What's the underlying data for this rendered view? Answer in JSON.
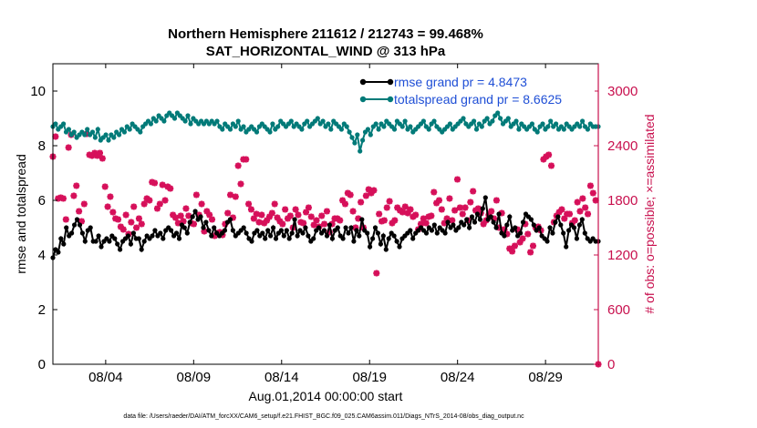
{
  "chart_data": {
    "type": "line",
    "title_line1": "Northern Hemisphere 211612 / 212743 = 99.468%",
    "title_line2": "SAT_HORIZONTAL_WIND @ 313 hPa",
    "xlabel": "Aug.01,2014 00:00:00 start",
    "ylabel_left": "rmse and totalspread",
    "ylabel_right": "# of obs: o=possible; ×=assimilated",
    "footer": "data file: /Users/raeder/DAI/ATM_forcXX/CAM6_setup/f.e21.FHIST_BGC.f09_025.CAM6assim.011/Diags_NTrS_2014-08/obs_diag_output.nc",
    "x_ticks": [
      {
        "label": "08/04",
        "day": 4
      },
      {
        "label": "08/09",
        "day": 9
      },
      {
        "label": "08/14",
        "day": 14
      },
      {
        "label": "08/19",
        "day": 19
      },
      {
        "label": "08/24",
        "day": 24
      },
      {
        "label": "08/29",
        "day": 29
      }
    ],
    "xlim": [
      1,
      32
    ],
    "ylim_left": [
      0,
      11
    ],
    "y_ticks_left": [
      "0",
      "2",
      "4",
      "6",
      "8",
      "10"
    ],
    "ylim_right": [
      0,
      3300
    ],
    "y_ticks_right": [
      "0",
      "600",
      "1200",
      "1800",
      "2400",
      "3000"
    ],
    "colors": {
      "rmse": "#000000",
      "spread": "#007a78",
      "obs": "#d6105a",
      "right_axis": "#c8104e"
    },
    "legend": [
      {
        "label": "rmse grand pr = 4.8473",
        "series": "rmse"
      },
      {
        "label": "totalspread grand pr = 8.6625",
        "series": "spread"
      }
    ],
    "series": [
      {
        "name": "rmse",
        "axis": "left",
        "values": [
          3.9,
          4.2,
          4.1,
          4.6,
          4.4,
          5.0,
          4.7,
          4.8,
          5.1,
          5.3,
          5.1,
          4.8,
          4.5,
          4.9,
          5.0,
          4.5,
          4.5,
          4.7,
          4.3,
          4.5,
          4.6,
          4.5,
          4.7,
          4.6,
          4.4,
          4.2,
          4.5,
          4.6,
          4.7,
          4.4,
          4.8,
          4.6,
          4.6,
          4.2,
          4.5,
          4.7,
          4.6,
          4.7,
          4.9,
          4.7,
          4.8,
          4.6,
          4.9,
          5.0,
          4.9,
          4.7,
          4.8,
          4.6,
          5.1,
          5.0,
          4.8,
          5.2,
          5.4,
          5.6,
          5.3,
          5.4,
          5.0,
          5.2,
          4.9,
          4.7,
          5.0,
          4.8,
          4.7,
          4.8,
          4.9,
          5.2,
          5.3,
          4.9,
          4.7,
          4.8,
          4.9,
          5.0,
          4.8,
          4.6,
          4.5,
          4.8,
          4.9,
          4.7,
          4.8,
          4.6,
          4.9,
          4.7,
          5.0,
          4.6,
          4.8,
          4.9,
          4.7,
          4.9,
          4.6,
          4.8,
          5.3,
          4.7,
          4.9,
          4.8,
          5.0,
          4.7,
          4.5,
          4.6,
          4.9,
          5.0,
          4.8,
          4.9,
          4.7,
          5.1,
          4.6,
          4.9,
          5.0,
          4.7,
          4.6,
          5.0,
          4.8,
          5.0,
          4.5,
          4.9,
          4.7,
          5.3,
          4.9,
          4.8,
          4.3,
          4.6,
          5.0,
          4.8,
          4.4,
          4.7,
          4.2,
          4.6,
          4.8,
          4.7,
          4.5,
          4.3,
          4.6,
          4.7,
          4.8,
          4.9,
          4.6,
          4.8,
          4.9,
          5.0,
          4.9,
          4.8,
          5.0,
          4.9,
          5.1,
          4.8,
          5.0,
          4.9,
          4.8,
          5.2,
          5.0,
          5.1,
          4.9,
          5.0,
          5.2,
          5.1,
          5.3,
          5.0,
          5.4,
          5.2,
          5.5,
          5.3,
          5.7,
          6.1,
          5.3,
          5.4,
          5.2,
          5.0,
          5.5,
          4.8,
          4.7,
          5.1,
          5.4,
          4.9,
          5.0,
          4.7,
          4.8,
          5.2,
          5.5,
          5.4,
          5.3,
          5.1,
          4.9,
          5.0,
          4.7,
          4.6,
          4.5,
          5.0,
          4.8,
          5.2,
          5.4,
          5.1,
          4.8,
          4.3,
          4.9,
          5.1,
          5.0,
          4.6,
          5.1,
          5.3,
          4.8,
          4.6,
          4.5,
          4.6,
          4.5,
          4.5
        ]
      },
      {
        "name": "totalspread",
        "axis": "left",
        "values": [
          8.7,
          8.8,
          8.6,
          8.7,
          8.8,
          8.5,
          8.6,
          8.4,
          8.5,
          8.3,
          8.4,
          8.5,
          8.4,
          8.6,
          8.4,
          8.5,
          8.3,
          8.6,
          8.2,
          8.3,
          8.4,
          8.2,
          8.4,
          8.3,
          8.5,
          8.4,
          8.6,
          8.5,
          8.7,
          8.6,
          8.8,
          8.7,
          8.6,
          8.5,
          8.7,
          8.8,
          8.9,
          8.8,
          9.0,
          8.9,
          9.1,
          9.0,
          8.9,
          9.1,
          9.2,
          9.1,
          9.0,
          9.2,
          9.1,
          9.0,
          8.9,
          9.1,
          8.8,
          9.0,
          8.9,
          8.8,
          8.9,
          8.8,
          8.9,
          8.8,
          8.9,
          8.8,
          8.9,
          8.7,
          8.6,
          8.8,
          8.7,
          8.6,
          8.8,
          8.7,
          8.9,
          8.6,
          8.7,
          8.5,
          8.6,
          8.7,
          8.6,
          8.5,
          8.7,
          8.8,
          8.7,
          8.6,
          8.5,
          8.8,
          8.6,
          8.7,
          8.9,
          8.8,
          8.7,
          8.8,
          8.9,
          8.7,
          8.8,
          8.7,
          8.6,
          8.8,
          8.9,
          8.7,
          8.8,
          8.9,
          9.0,
          8.8,
          8.9,
          8.7,
          8.8,
          8.6,
          8.9,
          8.8,
          8.7,
          8.6,
          8.8,
          8.7,
          8.5,
          8.3,
          8.1,
          8.4,
          7.8,
          8.2,
          8.5,
          8.6,
          8.4,
          8.7,
          8.8,
          8.6,
          8.8,
          8.7,
          8.9,
          8.8,
          8.7,
          8.6,
          8.9,
          8.8,
          8.7,
          8.9,
          8.6,
          8.7,
          8.5,
          8.6,
          8.7,
          8.8,
          8.9,
          8.7,
          8.6,
          8.8,
          8.9,
          8.7,
          8.6,
          8.5,
          8.6,
          8.7,
          8.8,
          8.6,
          8.7,
          8.8,
          8.9,
          9.0,
          8.8,
          8.7,
          8.8,
          8.9,
          8.6,
          8.8,
          8.7,
          8.9,
          9.0,
          8.8,
          8.9,
          9.1,
          9.2,
          9.0,
          8.8,
          8.9,
          9.0,
          8.7,
          8.8,
          8.9,
          8.6,
          8.8,
          8.7,
          8.6,
          8.7,
          8.8,
          8.6,
          8.5,
          8.7,
          8.8,
          8.6,
          8.7,
          8.9,
          8.7,
          8.8,
          8.6,
          8.7,
          8.6,
          8.8,
          8.7,
          8.6,
          8.7,
          8.8,
          8.7,
          8.9,
          8.7,
          8.6,
          8.8,
          8.7,
          8.7,
          8.7
        ]
      },
      {
        "name": "obs_assimilated",
        "axis": "right",
        "values": [
          2280,
          2500,
          1820,
          1830,
          1820,
          1590,
          2380,
          2520,
          1850,
          1960,
          1680,
          1570,
          1760,
          2530,
          2300,
          2290,
          2320,
          2290,
          2320,
          2260,
          1950,
          1730,
          1840,
          1670,
          1600,
          1590,
          1510,
          1480,
          1640,
          1430,
          1560,
          1730,
          1500,
          1600,
          1540,
          1760,
          1820,
          1800,
          2000,
          1990,
          1710,
          1760,
          1970,
          1800,
          1950,
          1930,
          1640,
          1610,
          1550,
          1630,
          1570,
          1710,
          1630,
          1550,
          1540,
          1860,
          1640,
          1760,
          1460,
          1680,
          1640,
          1590,
          1410,
          1440,
          1450,
          1420,
          1540,
          1660,
          1860,
          1610,
          1840,
          2180,
          1980,
          2250,
          2250,
          1760,
          1700,
          1600,
          1650,
          1560,
          1640,
          1550,
          1580,
          1620,
          1660,
          1760,
          1610,
          1570,
          1540,
          1700,
          1600,
          1630,
          1500,
          1700,
          1640,
          1560,
          1550,
          1670,
          1720,
          1620,
          1530,
          1580,
          1510,
          1630,
          1540,
          1680,
          1450,
          1540,
          1600,
          1600,
          1580,
          1800,
          1760,
          1880,
          1860,
          1680,
          1500,
          1600,
          1780,
          1500,
          1850,
          1920,
          1880,
          1910,
          1000,
          1650,
          1570,
          1580,
          1720,
          1790,
          1550,
          1580,
          1720,
          1690,
          1670,
          1730,
          1660,
          1700,
          1620,
          1640,
          1480,
          1540,
          1600,
          1550,
          1620,
          1630,
          1890,
          1770,
          1800,
          1700,
          1550,
          1600,
          1820,
          1580,
          1690,
          2030,
          1720,
          1650,
          1720,
          1580,
          1780,
          1900,
          1690,
          1710,
          1660,
          1540,
          1580,
          1640,
          1680,
          1600,
          1800,
          1500,
          1660,
          1480,
          1430,
          1270,
          1240,
          1300,
          1480,
          1340,
          1380,
          1540,
          1430,
          1230,
          1300,
          1500,
          1510,
          1470,
          2250,
          2280,
          2300,
          2180,
          1560,
          1630,
          1670,
          1700,
          1600,
          1650,
          1650,
          1550,
          1580,
          1780,
          1680,
          1820,
          1720,
          1650,
          1960,
          1880,
          1800,
          0
        ]
      }
    ]
  }
}
